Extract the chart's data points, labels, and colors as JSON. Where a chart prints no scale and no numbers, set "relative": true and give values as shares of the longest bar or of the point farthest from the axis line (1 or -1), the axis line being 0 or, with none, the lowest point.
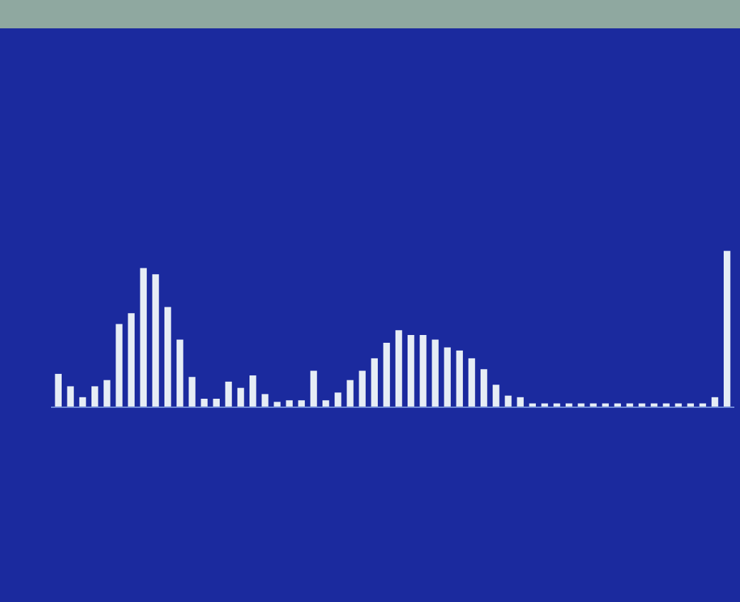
{
  "chart_data": {
    "type": "bar",
    "relative": true,
    "color": "#e6edf5",
    "categories": [
      null,
      null,
      null,
      null,
      null,
      null,
      null,
      null,
      null,
      null,
      null,
      null,
      null,
      null,
      null,
      null,
      null,
      null,
      null,
      null,
      null,
      null,
      null,
      null,
      null,
      null,
      null,
      null,
      null,
      null,
      null,
      null,
      null,
      null,
      null,
      null,
      null,
      null,
      null,
      null,
      null,
      null,
      null,
      null,
      null,
      null,
      null,
      null,
      null,
      null,
      null,
      null,
      null,
      null,
      null,
      null
    ],
    "values": [
      0.21,
      0.13,
      0.06,
      0.13,
      0.17,
      0.53,
      0.6,
      0.89,
      0.85,
      0.64,
      0.43,
      0.19,
      0.05,
      0.05,
      0.16,
      0.12,
      0.2,
      0.08,
      0.03,
      0.04,
      0.04,
      0.23,
      0.04,
      0.09,
      0.17,
      0.23,
      0.31,
      0.41,
      0.49,
      0.46,
      0.46,
      0.43,
      0.38,
      0.36,
      0.31,
      0.24,
      0.14,
      0.07,
      0.06,
      0.02,
      0.02,
      0.02,
      0.02,
      0.02,
      0.02,
      0.02,
      0.02,
      0.02,
      0.02,
      0.02,
      0.02,
      0.02,
      0.02,
      0.02,
      0.06,
      1
    ]
  }
}
